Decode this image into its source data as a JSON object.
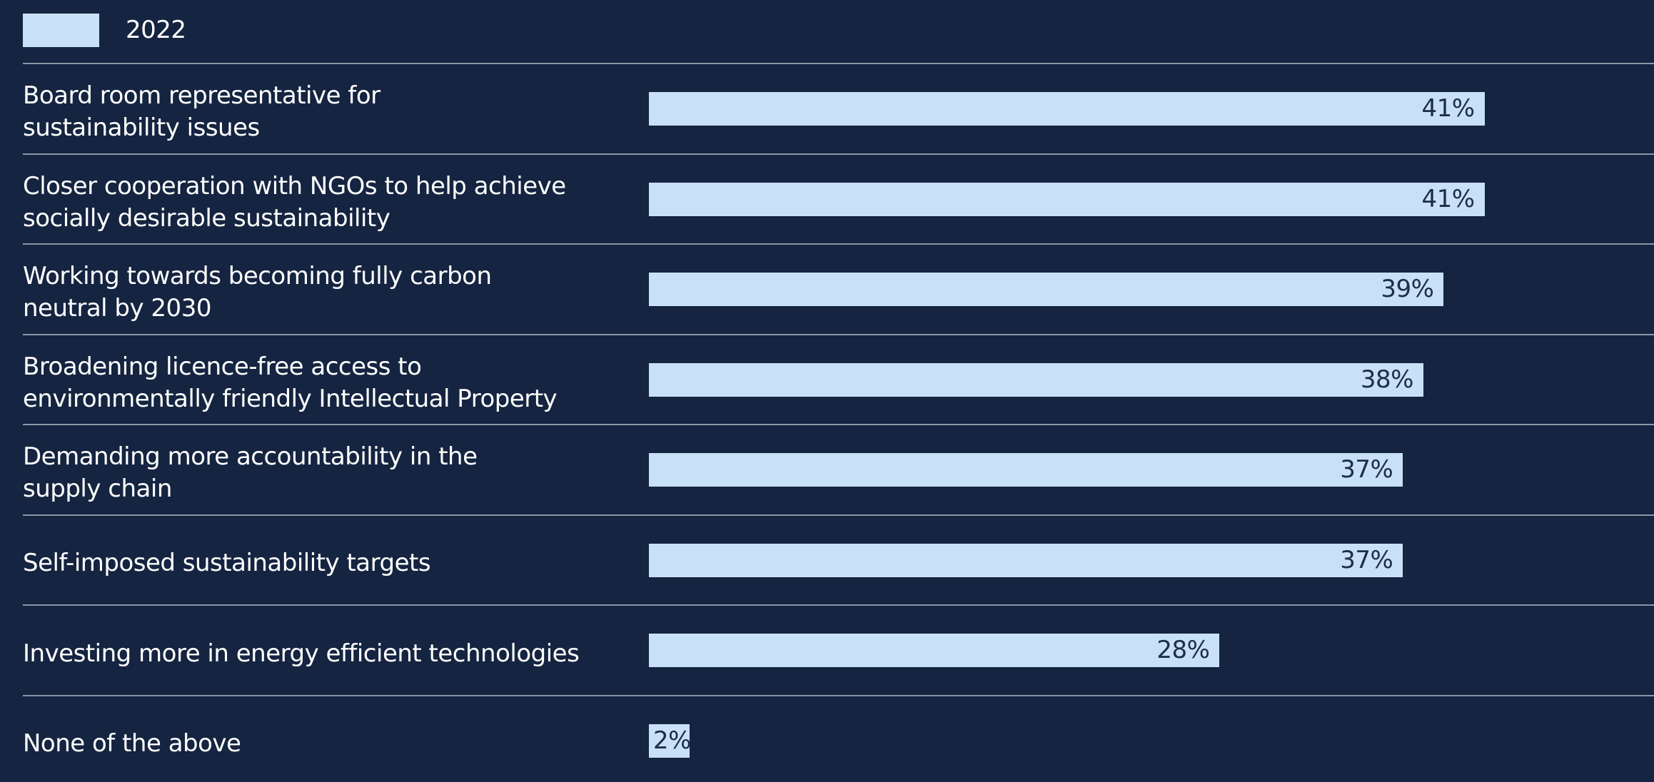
{
  "chart_data": {
    "type": "bar",
    "orientation": "horizontal",
    "categories": [
      "Board room representative for\nsustainability issues",
      "Closer cooperation with NGOs to help achieve\nsocially desirable sustainability",
      "Working towards becoming fully carbon\nneutral by 2030",
      "Broadening licence-free access to\nenvironmentally friendly Intellectual Property",
      "Demanding more accountability in the\nsupply chain",
      "Self-imposed sustainability targets",
      "Investing more in energy efficient technologies",
      "None of the above"
    ],
    "series": [
      {
        "name": "2022",
        "color": "#c9e1f6",
        "values": [
          41,
          41,
          39,
          38,
          37,
          37,
          28,
          2
        ],
        "value_labels": [
          "41%",
          "41%",
          "39%",
          "38%",
          "37%",
          "37%",
          "28%",
          "2%"
        ]
      }
    ],
    "xlim": [
      0,
      48
    ],
    "legend": "top-left"
  }
}
